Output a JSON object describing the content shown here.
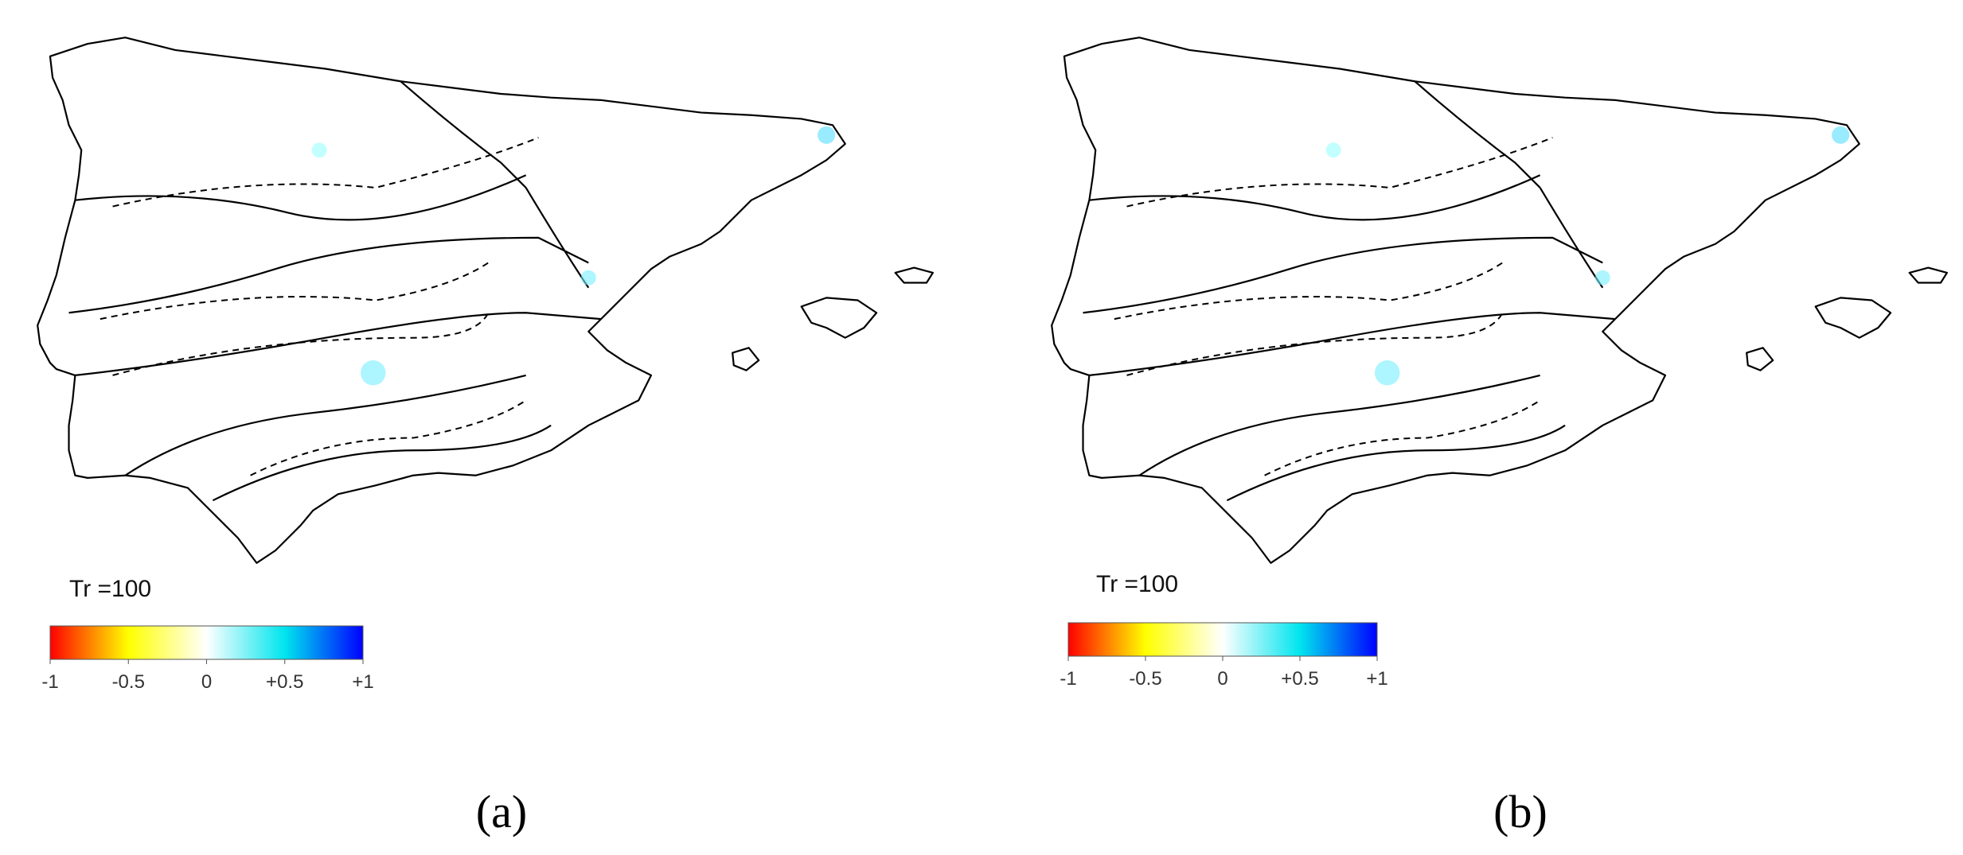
{
  "panels": [
    {
      "label": "(a)",
      "annotation": "Tr =100",
      "colorbar": {
        "lim": [
          -1,
          1
        ],
        "ticks": [
          -1,
          -0.5,
          0,
          {
            "value": 0.5,
            "label": "+0.5"
          },
          {
            "value": 1,
            "label": "+1"
          }
        ],
        "colors": [
          "#ff0000",
          "#ffff00",
          "#ffffff",
          "#00e5ee",
          "#0000ff"
        ]
      }
    },
    {
      "label": "(b)",
      "annotation": "Tr =100",
      "colorbar": {
        "lim": [
          -1,
          1
        ],
        "ticks": [
          -1,
          -0.5,
          0,
          {
            "value": 0.5,
            "label": "+0.5"
          },
          {
            "value": 1,
            "label": "+1"
          }
        ],
        "colors": [
          "#ff0000",
          "#ffff00",
          "#ffffff",
          "#00e5ee",
          "#0000ff"
        ]
      }
    }
  ]
}
